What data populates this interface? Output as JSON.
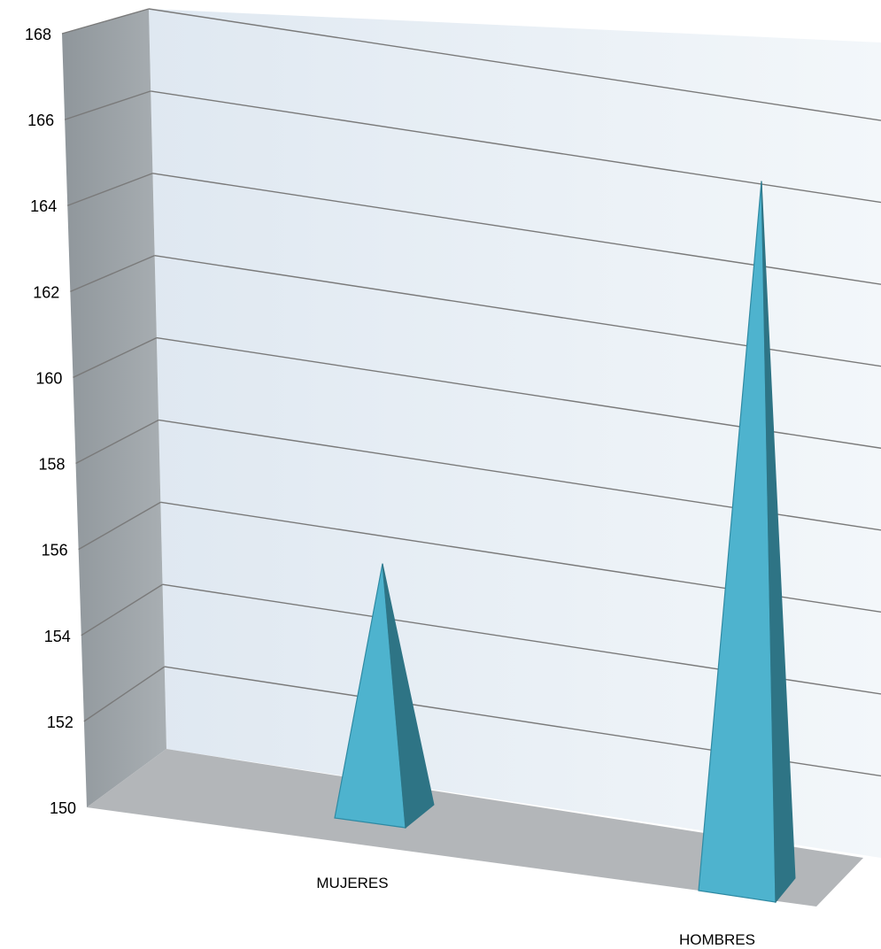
{
  "chart_data": {
    "type": "bar",
    "style": "3d-pyramid",
    "categories": [
      "MUJERES",
      "HOMBRES"
    ],
    "series": [
      {
        "values": [
          155.8,
          166.4
        ]
      }
    ],
    "ylim": [
      150,
      168
    ],
    "yticks": [
      "150",
      "152",
      "154",
      "156",
      "158",
      "160",
      "162",
      "164",
      "166",
      "168"
    ],
    "grid": true,
    "legend": "none",
    "colors": {
      "pyramid_front": "#4eb3ce",
      "pyramid_side": "#2e7485",
      "pyramid_edge": "#2f8aa3",
      "back_wall": "#e9f0f6",
      "side_wall": "#9aa1a6",
      "floor": "#b3b6b9",
      "gridline": "#7a7a7a"
    }
  }
}
